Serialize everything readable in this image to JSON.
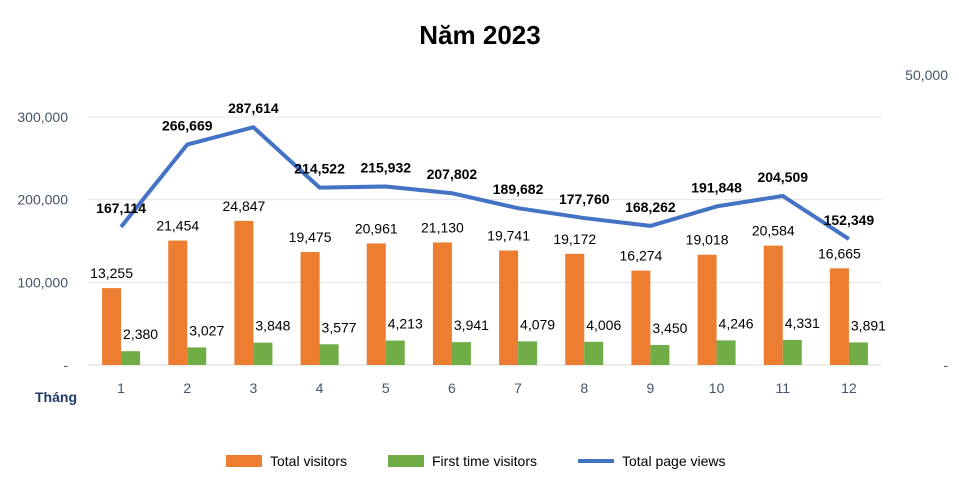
{
  "chart_data": {
    "type": "bar",
    "title": "Năm 2023",
    "xlabel": "Tháng",
    "categories": [
      "1",
      "2",
      "3",
      "4",
      "5",
      "6",
      "7",
      "8",
      "9",
      "10",
      "11",
      "12"
    ],
    "series": [
      {
        "name": "Total visitors",
        "type": "bar",
        "axis": "secondary",
        "color": "#ed7d31",
        "values": [
          13255,
          21454,
          24847,
          19475,
          20961,
          21130,
          19741,
          19172,
          16274,
          19018,
          20584,
          16665
        ]
      },
      {
        "name": "First time visitors",
        "type": "bar",
        "axis": "secondary",
        "color": "#70ad47",
        "values": [
          2380,
          3027,
          3848,
          3577,
          4213,
          3941,
          4079,
          4006,
          3450,
          4246,
          4331,
          3891
        ]
      },
      {
        "name": "Total page views",
        "type": "line",
        "axis": "primary",
        "color": "#4472c4",
        "values": [
          167114,
          266669,
          287614,
          214522,
          215932,
          207802,
          189682,
          177760,
          168262,
          191848,
          204509,
          152349
        ]
      }
    ],
    "primary_axis": {
      "ylim": [
        0,
        300000
      ],
      "ticks": [
        "300,000",
        "200,000",
        "100,000",
        "-"
      ],
      "tick_values": [
        300000,
        200000,
        100000,
        0
      ]
    },
    "secondary_axis": {
      "ylim": [
        0,
        50000
      ],
      "ticks": [
        "50,000",
        "-"
      ],
      "tick_values": [
        50000,
        0
      ]
    },
    "grid": true,
    "legend": "bottom"
  }
}
